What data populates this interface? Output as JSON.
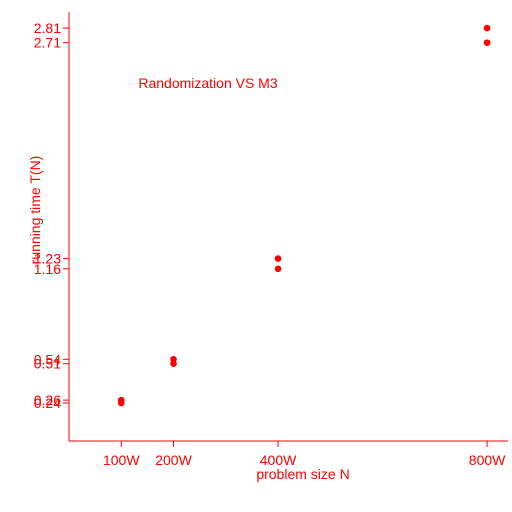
{
  "chart_data": {
    "type": "scatter",
    "title": "Randomization VS M3",
    "xlabel": "problem size N",
    "ylabel": "running time T(N)",
    "color": "#ff0000",
    "grid": false,
    "x_ticks": [
      {
        "value": 100,
        "label": "100W"
      },
      {
        "value": 200,
        "label": "200W"
      },
      {
        "value": 400,
        "label": "400W"
      },
      {
        "value": 800,
        "label": "800W"
      }
    ],
    "y_ticks": [
      {
        "value": 0.24,
        "label": "0.24"
      },
      {
        "value": 0.26,
        "label": "0.26"
      },
      {
        "value": 0.51,
        "label": "0.51"
      },
      {
        "value": 0.54,
        "label": "0.54"
      },
      {
        "value": 1.16,
        "label": "1.16"
      },
      {
        "value": 1.23,
        "label": "1.23"
      },
      {
        "value": 2.71,
        "label": "2.71"
      },
      {
        "value": 2.81,
        "label": "2.81"
      }
    ],
    "xlim": [
      0,
      840
    ],
    "ylim": [
      -0.02,
      2.92
    ],
    "points": [
      {
        "x": 100,
        "y": 0.24
      },
      {
        "x": 100,
        "y": 0.26
      },
      {
        "x": 200,
        "y": 0.51
      },
      {
        "x": 200,
        "y": 0.54
      },
      {
        "x": 400,
        "y": 1.16
      },
      {
        "x": 400,
        "y": 1.23
      },
      {
        "x": 800,
        "y": 2.71
      },
      {
        "x": 800,
        "y": 2.81
      }
    ]
  }
}
